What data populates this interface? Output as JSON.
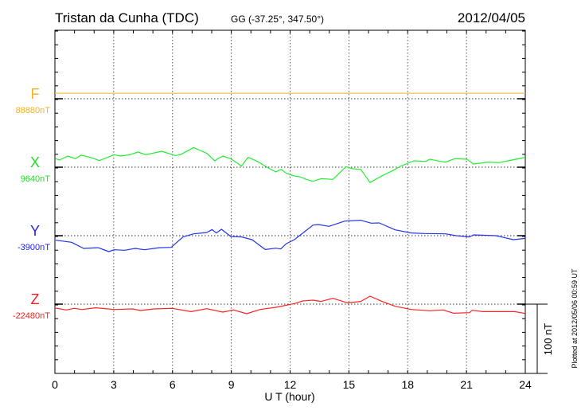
{
  "chart_data": {
    "type": "line",
    "title": "Tristan da Cunha (TDC)",
    "coords": "GG (-37.25°, 347.50°)",
    "date": "2012/04/05",
    "xlabel": "U T (hour)",
    "xlim": [
      0,
      24
    ],
    "xticks": [
      "0",
      "3",
      "6",
      "9",
      "12",
      "15",
      "18",
      "21",
      "24"
    ],
    "scale_label": "100 nT",
    "scale_nT": 100,
    "plotted_at": "Plotted at 2012/05/06 00:59 UT",
    "grid": true,
    "series": [
      {
        "name": "F",
        "baseline_label": "88880nT",
        "color": "#f5b225",
        "line_color": "#f2c24e",
        "points": [
          [
            0,
            8
          ],
          [
            24,
            8
          ]
        ]
      },
      {
        "name": "X",
        "baseline_label": "9640nT",
        "color": "#22dd22",
        "line_color": "#22ee33",
        "points": [
          [
            0.04,
            12.4
          ],
          [
            0.24,
            10.5
          ],
          [
            0.65,
            16.3
          ],
          [
            1.05,
            12.4
          ],
          [
            1.33,
            17.5
          ],
          [
            1.8,
            14.4
          ],
          [
            2.27,
            9.7
          ],
          [
            3.02,
            18.2
          ],
          [
            3.36,
            16.3
          ],
          [
            3.83,
            18.2
          ],
          [
            4.23,
            22.1
          ],
          [
            4.64,
            18.2
          ],
          [
            5.45,
            23.3
          ],
          [
            6.13,
            17.1
          ],
          [
            6.4,
            18.2
          ],
          [
            7.08,
            28.7
          ],
          [
            7.75,
            20.2
          ],
          [
            8.16,
            9.3
          ],
          [
            8.35,
            13
          ],
          [
            8.57,
            16.3
          ],
          [
            8.97,
            12.4
          ],
          [
            9.52,
            1.6
          ],
          [
            9.85,
            14.4
          ],
          [
            10.33,
            8.5
          ],
          [
            10.73,
            1.6
          ],
          [
            11.27,
            -7
          ],
          [
            11.54,
            -3.1
          ],
          [
            11.81,
            -8.9
          ],
          [
            12.22,
            -12.8
          ],
          [
            12.49,
            -14
          ],
          [
            12.83,
            -17.8
          ],
          [
            13.17,
            -20.6
          ],
          [
            13.58,
            -16.7
          ],
          [
            14.18,
            -17.8
          ],
          [
            14.86,
            0.8
          ],
          [
            15.2,
            -2.3
          ],
          [
            15.6,
            -3.1
          ],
          [
            16.08,
            -22.5
          ],
          [
            16.55,
            -14.7
          ],
          [
            17.23,
            -5
          ],
          [
            17.64,
            1.6
          ],
          [
            18.31,
            9.3
          ],
          [
            18.92,
            8.5
          ],
          [
            19.13,
            11.6
          ],
          [
            19.66,
            8.5
          ],
          [
            19.93,
            7.4
          ],
          [
            20.4,
            12.4
          ],
          [
            21.02,
            11.6
          ],
          [
            21.36,
            4.7
          ],
          [
            22.1,
            7.4
          ],
          [
            22.65,
            6.6
          ],
          [
            23.32,
            10.5
          ],
          [
            24,
            14.4
          ]
        ]
      },
      {
        "name": "Y",
        "baseline_label": "-3900nT",
        "color": "#2222ee",
        "line_color": "#2233ee",
        "points": [
          [
            0.04,
            -6.6
          ],
          [
            0.85,
            -9.7
          ],
          [
            1.46,
            -18.6
          ],
          [
            2.21,
            -17.5
          ],
          [
            2.75,
            -23.3
          ],
          [
            3.02,
            -20.6
          ],
          [
            3.56,
            -21.3
          ],
          [
            4.1,
            -18.6
          ],
          [
            4.57,
            -20.6
          ],
          [
            5.32,
            -17.5
          ],
          [
            5.93,
            -17.1
          ],
          [
            6.54,
            -1.9
          ],
          [
            7.08,
            2.7
          ],
          [
            7.75,
            4.7
          ],
          [
            8.02,
            8.9
          ],
          [
            8.23,
            3.9
          ],
          [
            8.5,
            9.3
          ],
          [
            8.97,
            -1.2
          ],
          [
            9.52,
            -1.9
          ],
          [
            10.06,
            -5.8
          ],
          [
            10.73,
            -20.2
          ],
          [
            11.27,
            -18.2
          ],
          [
            11.52,
            -19.4
          ],
          [
            11.81,
            -11.6
          ],
          [
            12.22,
            -5.8
          ],
          [
            13.17,
            15.5
          ],
          [
            13.44,
            16.3
          ],
          [
            13.98,
            13.6
          ],
          [
            14.79,
            21.3
          ],
          [
            15.6,
            22.5
          ],
          [
            16.14,
            18.2
          ],
          [
            16.55,
            18.6
          ],
          [
            17.36,
            8.5
          ],
          [
            18.18,
            3.9
          ],
          [
            18.85,
            3.1
          ],
          [
            19.93,
            2.7
          ],
          [
            20.48,
            0
          ],
          [
            21.15,
            -1.9
          ],
          [
            21.36,
            1.2
          ],
          [
            22.5,
            0
          ],
          [
            23.39,
            -5.8
          ],
          [
            24,
            -3.9
          ]
        ]
      },
      {
        "name": "Z",
        "baseline_label": "-22480nT",
        "color": "#ee2222",
        "line_color": "#ff2222",
        "points": [
          [
            0.04,
            -5.8
          ],
          [
            0.58,
            -8.5
          ],
          [
            0.98,
            -6.2
          ],
          [
            1.39,
            -7.8
          ],
          [
            2.07,
            -5.4
          ],
          [
            3.02,
            -7.8
          ],
          [
            3.96,
            -7
          ],
          [
            4.37,
            -9.3
          ],
          [
            5.05,
            -7
          ],
          [
            5.99,
            -6.2
          ],
          [
            6.94,
            -10.9
          ],
          [
            7.75,
            -6.6
          ],
          [
            8.57,
            -11.6
          ],
          [
            9.11,
            -8.5
          ],
          [
            9.79,
            -14
          ],
          [
            10.47,
            -7.8
          ],
          [
            11.27,
            -4.7
          ],
          [
            12.22,
            0.8
          ],
          [
            12.63,
            4.7
          ],
          [
            13.17,
            5.8
          ],
          [
            13.58,
            3.9
          ],
          [
            14.18,
            8.5
          ],
          [
            14.93,
            1.9
          ],
          [
            15.6,
            3.9
          ],
          [
            16.08,
            11.6
          ],
          [
            16.69,
            3.9
          ],
          [
            17.36,
            -3.1
          ],
          [
            18.18,
            -7.8
          ],
          [
            19.13,
            -9.7
          ],
          [
            19.8,
            -8.5
          ],
          [
            20.35,
            -13.2
          ],
          [
            21.15,
            -12.4
          ],
          [
            21.29,
            -8.9
          ],
          [
            21.83,
            -10.9
          ],
          [
            23.45,
            -10.9
          ],
          [
            24,
            -13.6
          ]
        ]
      }
    ]
  }
}
